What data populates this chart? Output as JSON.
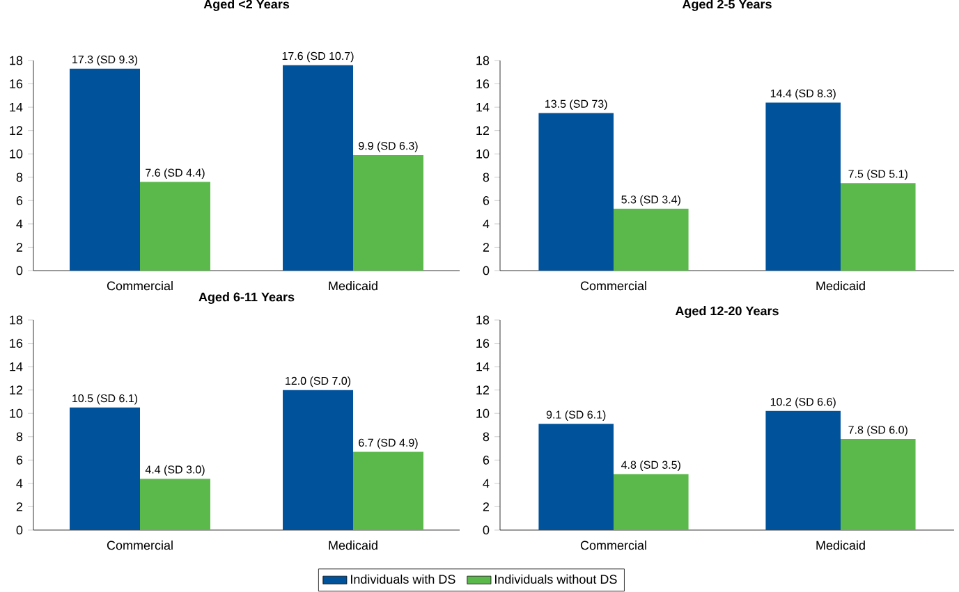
{
  "chart_data": [
    {
      "type": "bar",
      "title": "Aged <2 Years",
      "categories": [
        "Commercial",
        "Medicaid"
      ],
      "ylim": [
        0,
        18
      ],
      "yticks": [
        0,
        2,
        4,
        6,
        8,
        10,
        12,
        14,
        16,
        18
      ],
      "series": [
        {
          "color": "#00529b",
          "values": [
            17.3,
            17.6
          ],
          "value_labels": [
            "17.3 (SD 9.3)",
            "17.6 (SD 10.7)"
          ]
        },
        {
          "color": "#5bb94c",
          "values": [
            7.6,
            9.9
          ],
          "value_labels": [
            "7.6 (SD 4.4)",
            "9.9 (SD 6.3)"
          ]
        }
      ]
    },
    {
      "type": "bar",
      "title": "Aged 2-5 Years",
      "categories": [
        "Commercial",
        "Medicaid"
      ],
      "ylim": [
        0,
        18
      ],
      "yticks": [
        0,
        2,
        4,
        6,
        8,
        10,
        12,
        14,
        16,
        18
      ],
      "series": [
        {
          "color": "#00529b",
          "values": [
            13.5,
            14.4
          ],
          "value_labels": [
            "13.5 (SD 73)",
            "14.4 (SD 8.3)"
          ]
        },
        {
          "color": "#5bb94c",
          "values": [
            5.3,
            7.5
          ],
          "value_labels": [
            "5.3 (SD 3.4)",
            "7.5 (SD 5.1)"
          ]
        }
      ]
    },
    {
      "type": "bar",
      "title": "Aged 6-11 Years",
      "categories": [
        "Commercial",
        "Medicaid"
      ],
      "ylim": [
        0,
        18
      ],
      "yticks": [
        0,
        2,
        4,
        6,
        8,
        10,
        12,
        14,
        16,
        18
      ],
      "series": [
        {
          "color": "#00529b",
          "values": [
            10.5,
            12.0
          ],
          "value_labels": [
            "10.5 (SD 6.1)",
            "12.0 (SD 7.0)"
          ]
        },
        {
          "color": "#5bb94c",
          "values": [
            4.4,
            6.7
          ],
          "value_labels": [
            "4.4 (SD 3.0)",
            "6.7 (SD 4.9)"
          ]
        }
      ]
    },
    {
      "type": "bar",
      "title": "Aged 12-20 Years",
      "categories": [
        "Commercial",
        "Medicaid"
      ],
      "ylim": [
        0,
        18
      ],
      "yticks": [
        0,
        2,
        4,
        6,
        8,
        10,
        12,
        14,
        16,
        18
      ],
      "legend": "bottom",
      "series": [
        {
          "name": "Individuals with DS",
          "color": "#00529b",
          "values": [
            9.1,
            10.2
          ],
          "value_labels": [
            "9.1 (SD 6.1)",
            "10.2 (SD 6.6)"
          ]
        },
        {
          "name": "Individuals without DS",
          "color": "#5bb94c",
          "values": [
            4.8,
            7.8
          ],
          "value_labels": [
            "4.8 (SD 3.5)",
            "7.8 (SD 6.0)"
          ]
        }
      ]
    }
  ]
}
